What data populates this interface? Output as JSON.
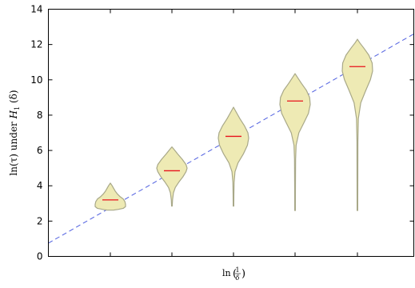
{
  "chart_data": {
    "type": "violin",
    "title": "",
    "xlabel_parts": [
      "ln",
      "(",
      "1",
      "δ",
      ")"
    ],
    "ylabel_parts": [
      "ln(τ) under ",
      "H",
      "1",
      " (δ)"
    ],
    "ylim": [
      0,
      14
    ],
    "yticks": [
      0,
      2,
      4,
      6,
      8,
      10,
      12,
      14
    ],
    "grid": false,
    "legend": "none",
    "colors": {
      "violin_fill": "#eeeab4",
      "violin_edge": "#a8a888",
      "median_line": "#e8121b",
      "reference_line": "#4f5fe0"
    },
    "reference_line": {
      "style": "dashed",
      "y_at_left_edge": 0.75,
      "y_at_right_edge": 12.6
    },
    "violins": [
      {
        "index": 1,
        "median": 3.2,
        "min": 2.62,
        "max": 4.15,
        "profile": [
          [
            2.62,
            0.2
          ],
          [
            2.66,
            0.5
          ],
          [
            2.72,
            0.85
          ],
          [
            2.82,
            1.0
          ],
          [
            2.95,
            1.0
          ],
          [
            3.1,
            0.96
          ],
          [
            3.25,
            0.85
          ],
          [
            3.4,
            0.62
          ],
          [
            3.55,
            0.45
          ],
          [
            3.7,
            0.32
          ],
          [
            3.85,
            0.22
          ],
          [
            4.0,
            0.12
          ],
          [
            4.15,
            0.0
          ]
        ]
      },
      {
        "index": 2,
        "median": 4.85,
        "min": 2.85,
        "max": 6.2,
        "profile": [
          [
            2.85,
            0.02
          ],
          [
            3.2,
            0.04
          ],
          [
            3.6,
            0.1
          ],
          [
            3.9,
            0.22
          ],
          [
            4.2,
            0.45
          ],
          [
            4.5,
            0.72
          ],
          [
            4.8,
            0.93
          ],
          [
            5.0,
            1.0
          ],
          [
            5.2,
            0.93
          ],
          [
            5.5,
            0.68
          ],
          [
            5.8,
            0.38
          ],
          [
            6.05,
            0.15
          ],
          [
            6.2,
            0.0
          ]
        ]
      },
      {
        "index": 3,
        "median": 6.8,
        "min": 2.85,
        "max": 8.45,
        "profile": [
          [
            2.85,
            0.02
          ],
          [
            3.5,
            0.025
          ],
          [
            4.2,
            0.04
          ],
          [
            4.8,
            0.1
          ],
          [
            5.3,
            0.3
          ],
          [
            5.8,
            0.65
          ],
          [
            6.3,
            0.92
          ],
          [
            6.7,
            1.0
          ],
          [
            7.0,
            0.95
          ],
          [
            7.4,
            0.72
          ],
          [
            7.8,
            0.42
          ],
          [
            8.2,
            0.16
          ],
          [
            8.45,
            0.0
          ]
        ]
      },
      {
        "index": 4,
        "median": 8.8,
        "min": 2.6,
        "max": 10.35,
        "profile": [
          [
            2.6,
            0.02
          ],
          [
            4.0,
            0.025
          ],
          [
            5.5,
            0.035
          ],
          [
            6.3,
            0.07
          ],
          [
            7.0,
            0.25
          ],
          [
            7.6,
            0.6
          ],
          [
            8.1,
            0.88
          ],
          [
            8.6,
            1.0
          ],
          [
            9.0,
            0.96
          ],
          [
            9.4,
            0.75
          ],
          [
            9.8,
            0.42
          ],
          [
            10.15,
            0.15
          ],
          [
            10.35,
            0.0
          ]
        ]
      },
      {
        "index": 5,
        "median": 10.75,
        "min": 2.6,
        "max": 12.3,
        "profile": [
          [
            2.6,
            0.02
          ],
          [
            4.5,
            0.025
          ],
          [
            6.5,
            0.03
          ],
          [
            7.8,
            0.06
          ],
          [
            8.7,
            0.22
          ],
          [
            9.4,
            0.55
          ],
          [
            10.0,
            0.85
          ],
          [
            10.5,
            1.0
          ],
          [
            10.95,
            0.97
          ],
          [
            11.4,
            0.75
          ],
          [
            11.8,
            0.42
          ],
          [
            12.1,
            0.15
          ],
          [
            12.3,
            0.0
          ]
        ]
      }
    ]
  }
}
